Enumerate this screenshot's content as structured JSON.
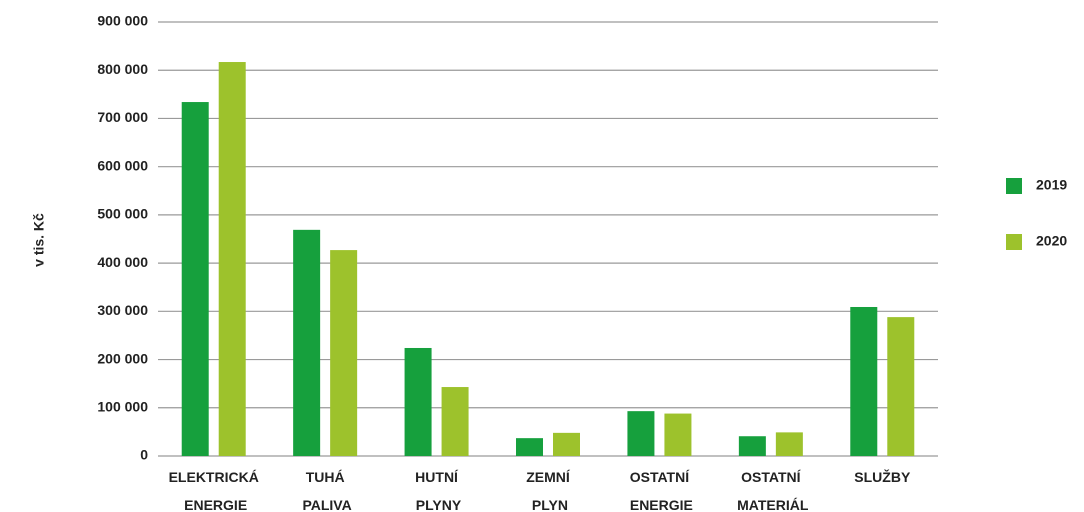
{
  "chart_data": {
    "type": "bar",
    "y_label": "v tis. Kč",
    "categories": [
      "ELEKTRICKÁ ENERGIE",
      "TUHÁ PALIVA",
      "HUTNÍ PLYNY",
      "ZEMNÍ PLYN",
      "OSTATNÍ ENERGIE",
      "OSTATNÍ MATERIÁL",
      "SLUŽBY"
    ],
    "series": [
      {
        "name": "2019",
        "color": "#16a03d",
        "values": [
          734000,
          469000,
          224000,
          37000,
          93000,
          41000,
          309000
        ]
      },
      {
        "name": "2020",
        "color": "#9dc22c",
        "values": [
          817000,
          427000,
          143000,
          48000,
          88000,
          49000,
          288000
        ]
      }
    ],
    "ylim": [
      0,
      900000
    ],
    "yticks": [
      {
        "value": 0,
        "label": "0"
      },
      {
        "value": 100000,
        "label": "100 000"
      },
      {
        "value": 200000,
        "label": "200 000"
      },
      {
        "value": 300000,
        "label": "300 000"
      },
      {
        "value": 400000,
        "label": "400 000"
      },
      {
        "value": 500000,
        "label": "500 000"
      },
      {
        "value": 600000,
        "label": "600 000"
      },
      {
        "value": 700000,
        "label": "700 000"
      },
      {
        "value": 800000,
        "label": "800 000"
      },
      {
        "value": 900000,
        "label": "900 000"
      }
    ],
    "grid": true,
    "legend": "right"
  }
}
